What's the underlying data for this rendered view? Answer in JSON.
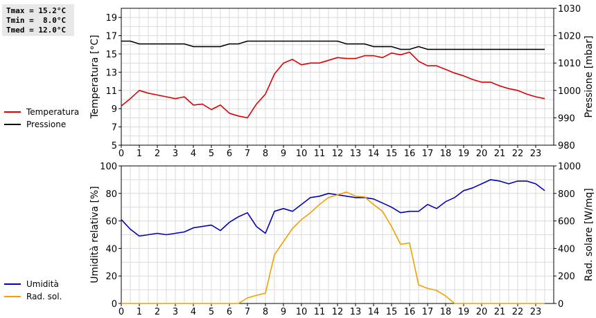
{
  "stats": {
    "tmax": "Tmax = 15.2°C",
    "tmin": "Tmin =  8.0°C",
    "tmed": "Tmed = 12.0°C"
  },
  "colors": {
    "temperatura": "#dd0000",
    "pressione": "#000000",
    "umidita": "#0000bb",
    "rad_sol": "#f0a000",
    "grid": "#d9d9d9"
  },
  "chart_data": [
    {
      "type": "line",
      "xlim": [
        0,
        24
      ],
      "x_ticks": [
        0,
        1,
        2,
        3,
        4,
        5,
        6,
        7,
        8,
        9,
        10,
        11,
        12,
        13,
        14,
        15,
        16,
        17,
        18,
        19,
        20,
        21,
        22,
        23
      ],
      "ylabel": "Temperatura [°C]",
      "ylim": [
        5,
        20
      ],
      "y_ticks": [
        5,
        7,
        9,
        11,
        13,
        15,
        17,
        19
      ],
      "y2label": "Pressione [mbar]",
      "y2lim": [
        980,
        1030
      ],
      "y2_ticks": [
        980,
        990,
        1000,
        1010,
        1020,
        1030
      ],
      "grid": true,
      "legend": [
        {
          "name": "Temperatura",
          "color_key": "temperatura"
        },
        {
          "name": "Pressione",
          "color_key": "pressione"
        }
      ],
      "series": [
        {
          "name": "Temperatura",
          "axis": "left",
          "x": [
            0,
            0.5,
            1,
            1.5,
            2,
            2.5,
            3,
            3.25,
            3.5,
            4,
            4.5,
            5,
            5.5,
            6,
            6.5,
            7,
            7.5,
            8,
            8.5,
            9,
            9.5,
            10,
            10.5,
            11,
            11.5,
            12,
            12.5,
            13,
            13.5,
            14,
            14.5,
            15,
            15.5,
            16,
            16.5,
            17,
            17.5,
            18,
            18.5,
            19,
            19.5,
            20,
            20.5,
            21,
            21.5,
            22,
            22.5,
            23,
            23.5
          ],
          "values": [
            9.3,
            10.1,
            11.0,
            10.7,
            10.5,
            10.3,
            10.1,
            10.2,
            10.3,
            9.4,
            9.5,
            8.9,
            9.4,
            8.5,
            8.2,
            8.0,
            9.5,
            10.6,
            12.8,
            14.0,
            14.4,
            13.8,
            14.0,
            14.0,
            14.3,
            14.6,
            14.5,
            14.5,
            14.8,
            14.8,
            14.6,
            15.1,
            14.9,
            15.2,
            14.2,
            13.7,
            13.7,
            13.3,
            12.9,
            12.6,
            12.2,
            11.9,
            11.9,
            11.5,
            11.2,
            11.0,
            10.6,
            10.3,
            10.1
          ]
        },
        {
          "name": "Pressione",
          "axis": "right",
          "x": [
            0,
            0.5,
            1,
            1.5,
            2,
            2.5,
            3,
            3.5,
            4,
            4.5,
            5,
            5.5,
            6,
            6.5,
            7,
            7.5,
            8,
            8.5,
            9,
            9.5,
            10,
            10.5,
            11,
            11.5,
            12,
            12.5,
            13,
            13.5,
            14,
            14.5,
            15,
            15.5,
            16,
            16.5,
            17,
            17.5,
            18,
            18.5,
            19,
            19.5,
            20,
            20.5,
            21,
            21.5,
            22,
            22.5,
            23,
            23.5
          ],
          "values": [
            1018,
            1018,
            1017,
            1017,
            1017,
            1017,
            1017,
            1017,
            1016,
            1016,
            1016,
            1016,
            1017,
            1017,
            1018,
            1018,
            1018,
            1018,
            1018,
            1018,
            1018,
            1018,
            1018,
            1018,
            1018,
            1017,
            1017,
            1017,
            1016,
            1016,
            1016,
            1015,
            1015,
            1016,
            1015,
            1015,
            1015,
            1015,
            1015,
            1015,
            1015,
            1015,
            1015,
            1015,
            1015,
            1015,
            1015,
            1015
          ]
        }
      ]
    },
    {
      "type": "line",
      "xlim": [
        0,
        24
      ],
      "x_ticks": [
        0,
        1,
        2,
        3,
        4,
        5,
        6,
        7,
        8,
        9,
        10,
        11,
        12,
        13,
        14,
        15,
        16,
        17,
        18,
        19,
        20,
        21,
        22,
        23
      ],
      "ylabel": "Umidità relativa [%]",
      "ylim": [
        0,
        100
      ],
      "y_ticks": [
        0,
        20,
        40,
        60,
        80,
        100
      ],
      "y2label": "Rad. solare [W/mq]",
      "y2lim": [
        0,
        1000
      ],
      "y2_ticks": [
        0,
        200,
        400,
        600,
        800,
        1000
      ],
      "grid": true,
      "legend": [
        {
          "name": "Umidità",
          "color_key": "umidita"
        },
        {
          "name": "Rad. sol.",
          "color_key": "rad_sol"
        }
      ],
      "series": [
        {
          "name": "Umidità",
          "axis": "left",
          "x": [
            0,
            0.5,
            1,
            1.5,
            2,
            2.5,
            3,
            3.5,
            4,
            4.5,
            5,
            5.5,
            6,
            6.5,
            7,
            7.5,
            8,
            8.5,
            9,
            9.5,
            10,
            10.5,
            11,
            11.5,
            12,
            12.5,
            13,
            13.5,
            14,
            14.5,
            15,
            15.5,
            16,
            16.5,
            17,
            17.5,
            18,
            18.5,
            19,
            19.5,
            20,
            20.5,
            21,
            21.5,
            22,
            22.5,
            23,
            23.5
          ],
          "values": [
            61,
            54,
            49,
            50,
            51,
            50,
            51,
            52,
            55,
            56,
            57,
            53,
            59,
            63,
            66,
            56,
            51,
            67,
            69,
            67,
            72,
            77,
            78,
            80,
            79,
            78,
            77,
            77,
            76,
            73,
            70,
            66,
            67,
            67,
            72,
            69,
            74,
            77,
            82,
            84,
            87,
            90,
            89,
            87,
            89,
            89,
            87,
            82
          ]
        },
        {
          "name": "Rad. sol.",
          "axis": "right",
          "x": [
            0,
            1,
            2,
            3,
            4,
            5,
            6,
            6.5,
            7,
            7.5,
            8,
            8.5,
            9,
            9.5,
            10,
            10.5,
            11,
            11.5,
            12,
            12.5,
            13,
            13.5,
            14,
            14.5,
            15,
            15.5,
            16,
            16.5,
            17,
            17.5,
            18,
            18.5,
            19,
            20,
            21,
            22,
            23,
            23.5
          ],
          "values": [
            0,
            0,
            0,
            0,
            0,
            0,
            0,
            0,
            40,
            60,
            75,
            355,
            450,
            545,
            610,
            660,
            720,
            770,
            790,
            810,
            780,
            775,
            720,
            670,
            560,
            430,
            440,
            135,
            110,
            95,
            55,
            0,
            0,
            0,
            0,
            0,
            0,
            0
          ]
        }
      ]
    }
  ]
}
